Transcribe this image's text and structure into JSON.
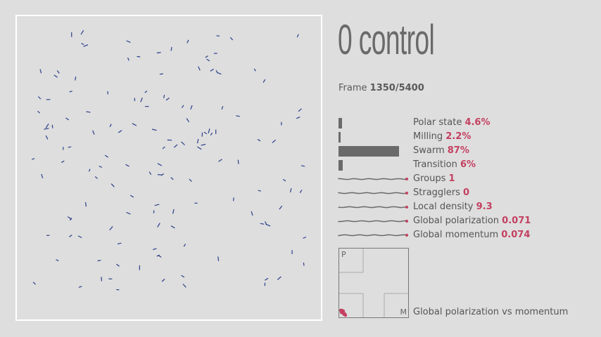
{
  "title": "0 control",
  "frame": {
    "label": "Frame",
    "value": "1350/5400"
  },
  "metrics": [
    {
      "name": "Polar state",
      "value": "4.6%",
      "fraction": 0.046,
      "kind": "bar"
    },
    {
      "name": "Milling",
      "value": "2.2%",
      "fraction": 0.022,
      "kind": "bar"
    },
    {
      "name": "Swarm",
      "value": "87%",
      "fraction": 0.87,
      "kind": "bar"
    },
    {
      "name": "Transition",
      "value": "6%",
      "fraction": 0.06,
      "kind": "bar"
    },
    {
      "name": "Groups",
      "value": "1",
      "kind": "spark"
    },
    {
      "name": "Stragglers",
      "value": "0",
      "kind": "spark"
    },
    {
      "name": "Local density",
      "value": "9.3",
      "kind": "spark"
    },
    {
      "name": "Global polarization",
      "value": "0.071",
      "kind": "spark"
    },
    {
      "name": "Global momentum",
      "value": "0.074",
      "kind": "spark"
    }
  ],
  "phase_plot": {
    "y_axis": "P",
    "x_axis": "M",
    "caption": "Global polarization vs momentum"
  },
  "colors": {
    "accent": "#c44060",
    "agent": "#2b3f8a",
    "bar": "#6a6a6a"
  }
}
